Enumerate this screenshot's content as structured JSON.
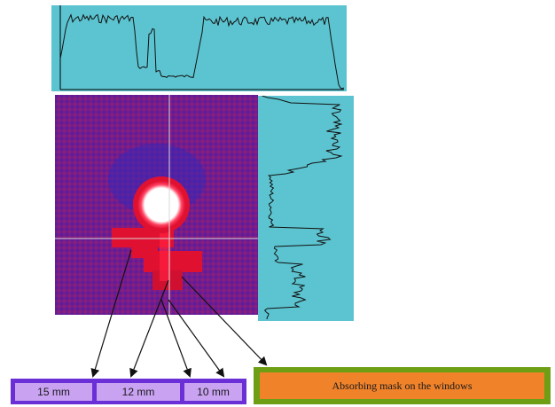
{
  "labels": {
    "w15": "15 mm",
    "w12": "12 mm",
    "w10a": "10 mm",
    "mask": "Absorbing mask on the  windows"
  },
  "colors": {
    "profile_bg": "#5cc4d0",
    "image_bg": "#2b1d8a",
    "image_red": "#e01030",
    "label_border": "#6a2fd6",
    "label_fill": "#c9a2f2",
    "mask_border": "#6e9e14",
    "mask_fill": "#f0822a"
  }
}
